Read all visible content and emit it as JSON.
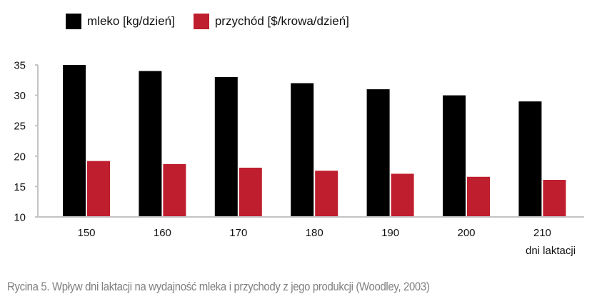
{
  "legend": {
    "items": [
      {
        "label": "mleko [kg/dzień]",
        "color": "#000000"
      },
      {
        "label": "przychód [$/krowa/dzień]",
        "color": "#be1e2d"
      }
    ]
  },
  "axes": {
    "xlabel": "dni laktacji",
    "y_ticks": [
      "35",
      "30",
      "25",
      "20",
      "15",
      "10"
    ],
    "x_ticks": [
      "150",
      "160",
      "170",
      "180",
      "190",
      "200",
      "210"
    ]
  },
  "caption": "Rycina 5. Wpływ dni laktacji na wydajność mleka i przychody z jego produkcji (Woodley, 2003)",
  "chart_data": {
    "type": "bar",
    "title": "",
    "categories": [
      "150",
      "160",
      "170",
      "180",
      "190",
      "200",
      "210"
    ],
    "series": [
      {
        "name": "mleko [kg/dzień]",
        "color": "#000000",
        "values": [
          35,
          34,
          33,
          32,
          31,
          30,
          29
        ]
      },
      {
        "name": "przychód [$/krowa/dzień]",
        "color": "#be1e2d",
        "values": [
          19.2,
          18.7,
          18.1,
          17.6,
          17.1,
          16.6,
          16.1
        ]
      }
    ],
    "xlabel": "dni laktacji",
    "ylabel": "",
    "ylim": [
      10,
      35
    ],
    "y_ticks": [
      10,
      15,
      20,
      25,
      30,
      35
    ],
    "grid": false,
    "legend_position": "top",
    "caption": "Rycina 5. Wpływ dni laktacji na wydajność mleka i przychody z jego produkcji (Woodley, 2003)"
  }
}
